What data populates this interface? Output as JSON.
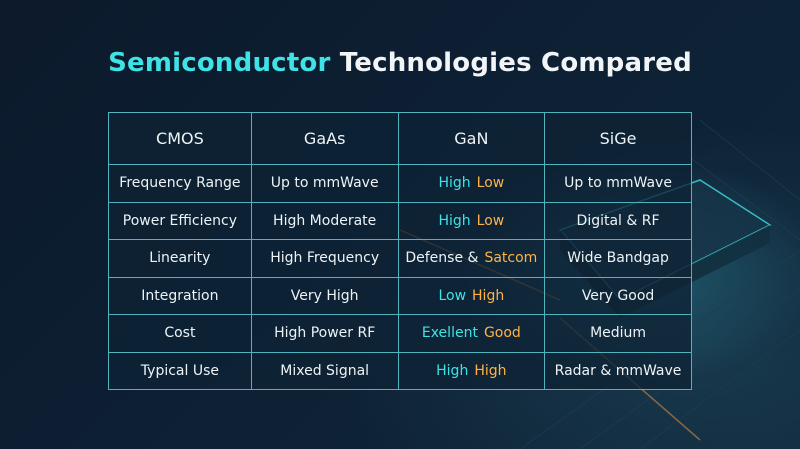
{
  "title": {
    "highlight": "Semiconductor",
    "rest": "Technologies Compared"
  },
  "table": {
    "header": [
      "CMOS",
      "GaAs",
      "GaN",
      "SiGe"
    ],
    "rows": [
      [
        "Frequency Range",
        "Up to mmWave",
        [
          {
            "text": "High",
            "color": "#3fe3e6"
          },
          {
            "text": "Low",
            "color": "#ffb347"
          }
        ],
        "Up to mmWave"
      ],
      [
        "Power Efficiency",
        "High Moderate",
        [
          {
            "text": "High",
            "color": "#3fe3e6"
          },
          {
            "text": "Low",
            "color": "#ffb347"
          }
        ],
        "Digital & RF"
      ],
      [
        "Linearity",
        "High Frequency",
        [
          {
            "text": "Defense &",
            "color": "#eef3f6"
          },
          {
            "text": "Satcom",
            "color": "#ffb347"
          }
        ],
        "Wide Bandgap"
      ],
      [
        "Integration",
        "Very High",
        [
          {
            "text": "Low",
            "color": "#3fe3e6"
          },
          {
            "text": "High",
            "color": "#ffb347"
          }
        ],
        "Very Good"
      ],
      [
        "Cost",
        "High Power RF",
        [
          {
            "text": "Exellent",
            "color": "#3fe3e6"
          },
          {
            "text": "Good",
            "color": "#ffb347"
          }
        ],
        "Medium"
      ],
      [
        "Typical Use",
        "Mixed Signal",
        [
          {
            "text": "High",
            "color": "#3fe3e6"
          },
          {
            "text": "High",
            "color": "#ffb347"
          }
        ],
        "Radar & mmWave"
      ]
    ]
  }
}
